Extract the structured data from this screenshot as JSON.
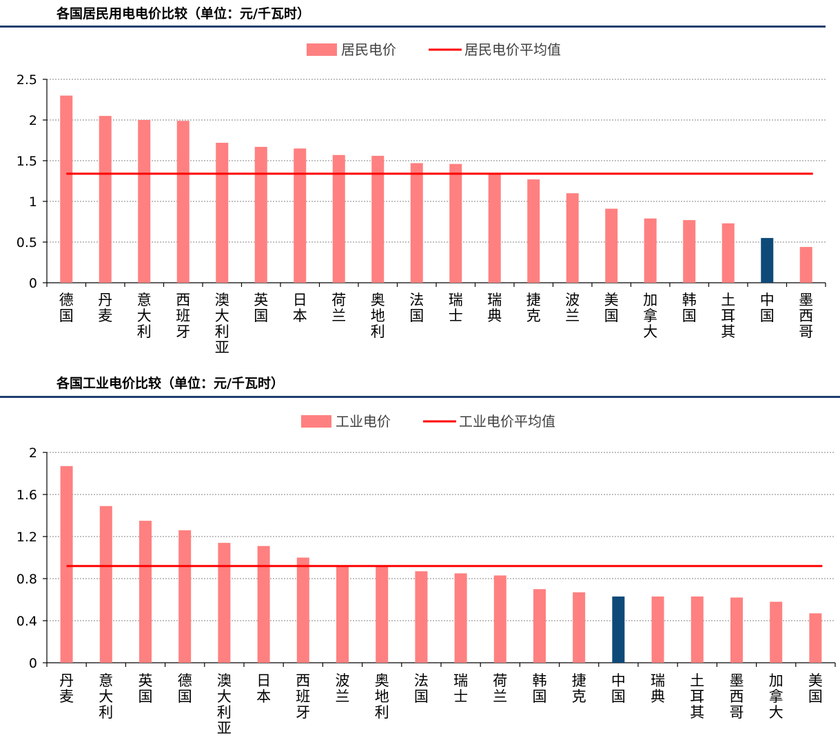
{
  "chart_data": [
    {
      "type": "bar",
      "title": "各国居民用电电价比较（单位：元/千瓦时）",
      "categories": [
        "德国",
        "丹麦",
        "意大利",
        "西班牙",
        "澳大利亚",
        "英国",
        "日本",
        "荷兰",
        "奥地利",
        "法国",
        "瑞士",
        "瑞典",
        "捷克",
        "波兰",
        "美国",
        "加拿大",
        "韩国",
        "土耳其",
        "中国",
        "墨西哥"
      ],
      "series": [
        {
          "name": "居民电价",
          "values": [
            2.3,
            2.05,
            2.0,
            1.99,
            1.72,
            1.67,
            1.65,
            1.57,
            1.56,
            1.47,
            1.46,
            1.34,
            1.27,
            1.1,
            0.91,
            0.79,
            0.77,
            0.73,
            0.55,
            0.44
          ]
        }
      ],
      "average": {
        "name": "居民电价平均值",
        "value": 1.34
      },
      "highlight": "中国",
      "yticks": [
        "2.5",
        "2",
        "1.5",
        "1",
        "0.5",
        "0"
      ],
      "ylim": [
        0,
        2.5
      ],
      "legend_position": "top-center",
      "grid": true
    },
    {
      "type": "bar",
      "title": "各国工业电价比较（单位：元/千瓦时）",
      "categories": [
        "丹麦",
        "意大利",
        "英国",
        "德国",
        "澳大利亚",
        "日本",
        "西班牙",
        "波兰",
        "奥地利",
        "法国",
        "瑞士",
        "荷兰",
        "韩国",
        "捷克",
        "中国",
        "瑞典",
        "土耳其",
        "墨西哥",
        "加拿大",
        "美国"
      ],
      "series": [
        {
          "name": "工业电价",
          "values": [
            1.87,
            1.49,
            1.35,
            1.26,
            1.14,
            1.11,
            1.0,
            0.92,
            0.92,
            0.87,
            0.85,
            0.83,
            0.7,
            0.67,
            0.63,
            0.63,
            0.63,
            0.62,
            0.58,
            0.47
          ]
        }
      ],
      "average": {
        "name": "工业电价平均值",
        "value": 0.92
      },
      "highlight": "中国",
      "yticks": [
        "2",
        "1.6",
        "1.2",
        "0.8",
        "0.4",
        "0"
      ],
      "ylim": [
        0,
        2
      ],
      "legend_position": "top-center",
      "grid": true
    }
  ],
  "colors": {
    "bar": "#ff8080",
    "highlight": "#0e4a78",
    "average_line": "#ff0000",
    "grid": "#808080",
    "rule": "#1f3f6e"
  }
}
